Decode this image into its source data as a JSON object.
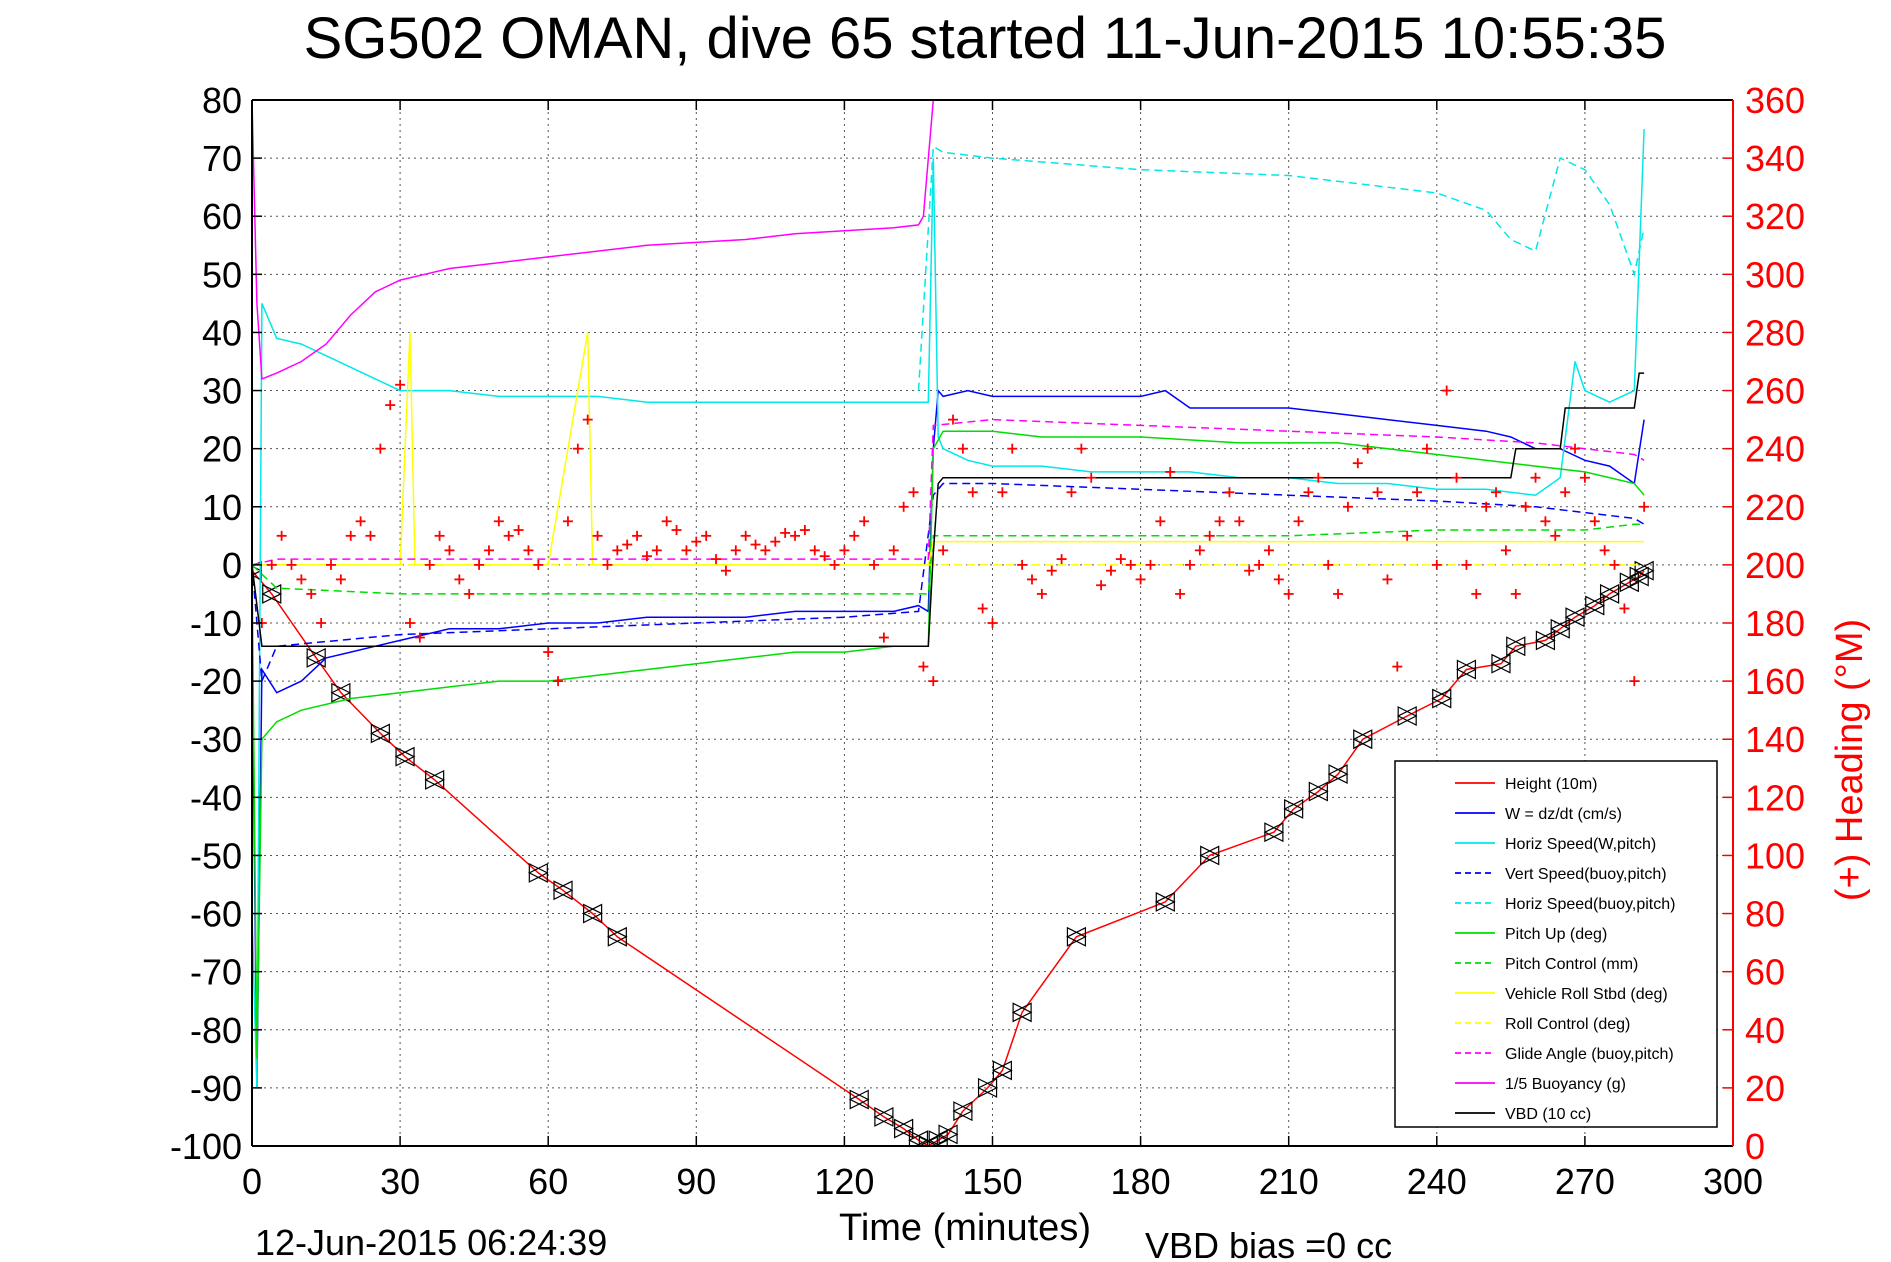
{
  "chart_data": {
    "type": "line",
    "title": "SG502 OMAN, dive 65 started 11-Jun-2015 10:55:35",
    "xlabel": "Time (minutes)",
    "ylabel": "",
    "y2label": "(+) Heading (°M)",
    "footer_left": "12-Jun-2015 06:24:39",
    "footer_right": "VBD bias =0 cc",
    "xlim": [
      0,
      300
    ],
    "ylim": [
      -100,
      80
    ],
    "y2lim": [
      0,
      360
    ],
    "grid": true,
    "legend_position": "bottom-right",
    "xticks": [
      "0",
      "30",
      "60",
      "90",
      "120",
      "150",
      "180",
      "210",
      "240",
      "270",
      "300"
    ],
    "yticks": [
      "80",
      "70",
      "60",
      "50",
      "40",
      "30",
      "20",
      "10",
      "0",
      "-10",
      "-20",
      "-30",
      "-40",
      "-50",
      "-60",
      "-70",
      "-80",
      "-90",
      "-100"
    ],
    "y2ticks": [
      "360",
      "340",
      "320",
      "300",
      "280",
      "260",
      "240",
      "220",
      "200",
      "180",
      "160",
      "140",
      "120",
      "100",
      "80",
      "60",
      "40",
      "20",
      "0"
    ],
    "series": [
      {
        "name": "Height (10m)",
        "color": "#ff0000",
        "style": "solid",
        "marker": "triangle",
        "x": [
          0,
          4,
          13,
          18,
          26,
          31,
          37,
          58,
          63,
          69,
          74,
          123,
          128,
          132,
          135,
          137,
          139,
          141,
          144,
          149,
          152,
          156,
          167,
          185,
          194,
          207,
          211,
          216,
          220,
          225,
          234,
          241,
          246,
          253,
          256,
          262,
          265,
          268,
          272,
          275,
          279,
          281,
          282
        ],
        "y": [
          -1,
          -5,
          -16,
          -22,
          -29,
          -33,
          -37,
          -53,
          -56,
          -60,
          -64,
          -92,
          -95,
          -97,
          -99,
          -100,
          -99,
          -98,
          -94,
          -90,
          -87,
          -77,
          -64,
          -58,
          -50,
          -46,
          -42,
          -39,
          -36,
          -30,
          -26,
          -23,
          -18,
          -17,
          -14,
          -13,
          -11,
          -9,
          -7,
          -5,
          -3,
          -2,
          -1
        ]
      },
      {
        "name": "W = dz/dt (cm/s)",
        "color": "#0000ff",
        "style": "solid",
        "x": [
          0,
          1,
          2,
          5,
          10,
          15,
          20,
          25,
          30,
          40,
          50,
          60,
          70,
          80,
          90,
          100,
          110,
          120,
          130,
          135,
          137,
          138,
          139,
          140,
          145,
          150,
          160,
          170,
          180,
          185,
          190,
          200,
          210,
          220,
          230,
          240,
          250,
          255,
          260,
          265,
          270,
          275,
          280,
          282
        ],
        "y": [
          -10,
          -90,
          -18,
          -22,
          -20,
          -16,
          -15,
          -14,
          -13,
          -11,
          -11,
          -10,
          -10,
          -9,
          -9,
          -9,
          -8,
          -8,
          -8,
          -7,
          -8,
          20,
          30,
          29,
          30,
          29,
          29,
          29,
          29,
          30,
          27,
          27,
          27,
          26,
          25,
          24,
          23,
          22,
          20,
          20,
          18,
          17,
          14,
          25
        ]
      },
      {
        "name": "Horiz Speed(W,pitch)",
        "color": "#00e8e8",
        "style": "solid",
        "x": [
          0,
          1,
          2,
          5,
          10,
          15,
          20,
          25,
          30,
          40,
          50,
          60,
          70,
          80,
          90,
          100,
          110,
          120,
          130,
          135,
          137,
          138,
          139,
          140,
          145,
          150,
          160,
          170,
          180,
          190,
          200,
          210,
          220,
          230,
          240,
          250,
          260,
          265,
          268,
          270,
          275,
          280,
          282
        ],
        "y": [
          -60,
          -90,
          45,
          39,
          38,
          36,
          34,
          32,
          30,
          30,
          29,
          29,
          29,
          28,
          28,
          28,
          28,
          28,
          28,
          28,
          28,
          70,
          22,
          20,
          18,
          17,
          17,
          16,
          16,
          16,
          15,
          15,
          14,
          14,
          13,
          13,
          12,
          15,
          35,
          30,
          28,
          30,
          75
        ]
      },
      {
        "name": "Vert Speed(buoy,pitch)",
        "color": "#0000ff",
        "style": "dashed",
        "x": [
          0,
          2,
          5,
          30,
          60,
          90,
          120,
          135,
          138,
          140,
          150,
          180,
          210,
          240,
          260,
          270,
          280,
          282
        ],
        "y": [
          0,
          -20,
          -14,
          -12,
          -11,
          -10,
          -9,
          -8,
          12,
          14,
          14,
          13,
          12,
          11,
          10,
          9,
          8,
          7
        ]
      },
      {
        "name": "Horiz Speed(buoy,pitch)",
        "color": "#00e8e8",
        "style": "dashed",
        "x": [
          135,
          138,
          140,
          150,
          180,
          210,
          240,
          250,
          255,
          260,
          265,
          270,
          275,
          280,
          282
        ],
        "y": [
          30,
          72,
          71,
          70,
          68,
          67,
          64,
          61,
          56,
          54,
          70,
          68,
          62,
          50,
          58
        ]
      },
      {
        "name": "Pitch Up (deg)",
        "color": "#00dd00",
        "style": "solid",
        "x": [
          0,
          1,
          2,
          5,
          10,
          20,
          30,
          40,
          50,
          60,
          70,
          80,
          90,
          100,
          110,
          120,
          130,
          135,
          137,
          138,
          140,
          150,
          160,
          180,
          200,
          220,
          240,
          260,
          270,
          280,
          282
        ],
        "y": [
          0,
          -85,
          -30,
          -27,
          -25,
          -23,
          -22,
          -21,
          -20,
          -20,
          -19,
          -18,
          -17,
          -16,
          -15,
          -15,
          -14,
          -14,
          -14,
          20,
          23,
          23,
          22,
          22,
          21,
          21,
          19,
          17,
          16,
          14,
          12
        ]
      },
      {
        "name": "Pitch Control (mm)",
        "color": "#00dd00",
        "style": "dashed",
        "x": [
          0,
          5,
          30,
          60,
          90,
          120,
          137,
          138,
          150,
          180,
          210,
          240,
          260,
          270,
          280,
          282
        ],
        "y": [
          0,
          -4,
          -5,
          -5,
          -5,
          -5,
          -5,
          5,
          5,
          5,
          5,
          6,
          6,
          6,
          7,
          7
        ]
      },
      {
        "name": "Vehicle Roll Stbd (deg)",
        "color": "#ffff00",
        "style": "solid",
        "x": [
          0,
          10,
          20,
          30,
          32,
          33,
          60,
          68,
          69,
          90,
          120,
          137,
          138,
          150,
          180,
          210,
          240,
          270,
          280,
          282
        ],
        "y": [
          0,
          0,
          0,
          0,
          40,
          0,
          0,
          40,
          0,
          0,
          0,
          0,
          4,
          4,
          4,
          4,
          4,
          4,
          4,
          4
        ]
      },
      {
        "name": "Roll Control (deg)",
        "color": "#ffff00",
        "style": "dashed",
        "x": [
          0,
          282
        ],
        "y": [
          0,
          0
        ]
      },
      {
        "name": "Glide Angle (buoy,pitch)",
        "color": "#ff00ff",
        "style": "dashed",
        "x": [
          0,
          5,
          30,
          60,
          90,
          120,
          137,
          138,
          150,
          180,
          210,
          240,
          260,
          270,
          280,
          282
        ],
        "y": [
          0,
          1,
          1,
          1,
          1,
          1,
          1,
          24,
          25,
          24,
          23,
          22,
          21,
          20,
          19,
          18
        ]
      },
      {
        "name": "1/5 Buoyancy (g)",
        "color": "#ff00ff",
        "style": "solid",
        "x": [
          0,
          1,
          2,
          5,
          10,
          15,
          20,
          25,
          30,
          35,
          40,
          50,
          60,
          70,
          80,
          90,
          100,
          110,
          120,
          130,
          135,
          136,
          138
        ],
        "y": [
          80,
          45,
          32,
          33,
          35,
          38,
          43,
          47,
          49,
          50,
          51,
          52,
          53,
          54,
          55,
          55.5,
          56,
          57,
          57.5,
          58,
          58.5,
          60,
          80
        ]
      },
      {
        "name": "VBD (10 cc)",
        "color": "#000000",
        "style": "solid",
        "x": [
          0,
          2,
          3,
          136,
          137,
          138,
          139,
          140,
          240,
          255,
          256,
          265,
          266,
          280,
          281,
          282
        ],
        "y": [
          0,
          -14,
          -14,
          -14,
          -14,
          2,
          14,
          15,
          15,
          15,
          20,
          20,
          27,
          27,
          33,
          33
        ]
      }
    ],
    "heading": {
      "name": "(+) Heading",
      "color": "#ff0000",
      "marker": "plus",
      "x": [
        0,
        2,
        4,
        6,
        8,
        10,
        12,
        14,
        16,
        18,
        20,
        22,
        24,
        26,
        28,
        30,
        32,
        34,
        36,
        38,
        40,
        42,
        44,
        46,
        48,
        50,
        52,
        54,
        56,
        58,
        60,
        62,
        64,
        66,
        68,
        70,
        72,
        74,
        76,
        78,
        80,
        82,
        84,
        86,
        88,
        90,
        92,
        94,
        96,
        98,
        100,
        102,
        104,
        106,
        108,
        110,
        112,
        114,
        116,
        118,
        120,
        122,
        124,
        126,
        128,
        130,
        132,
        134,
        136,
        138,
        140,
        142,
        144,
        146,
        148,
        150,
        152,
        154,
        156,
        158,
        160,
        162,
        164,
        166,
        168,
        170,
        172,
        174,
        176,
        178,
        180,
        182,
        184,
        186,
        188,
        190,
        192,
        194,
        196,
        198,
        200,
        202,
        204,
        206,
        208,
        210,
        212,
        214,
        216,
        218,
        220,
        222,
        224,
        226,
        228,
        230,
        232,
        234,
        236,
        238,
        240,
        242,
        244,
        246,
        248,
        250,
        252,
        254,
        256,
        258,
        260,
        262,
        264,
        266,
        268,
        270,
        272,
        274,
        276,
        278,
        280,
        282
      ],
      "y": [
        40,
        180,
        200,
        210,
        200,
        195,
        190,
        180,
        200,
        195,
        210,
        215,
        210,
        240,
        255,
        262,
        180,
        175,
        200,
        210,
        205,
        195,
        190,
        200,
        205,
        215,
        210,
        212,
        205,
        200,
        170,
        160,
        215,
        240,
        250,
        210,
        200,
        205,
        207,
        210,
        203,
        205,
        215,
        212,
        205,
        208,
        210,
        202,
        198,
        205,
        210,
        207,
        205,
        208,
        211,
        210,
        212,
        205,
        203,
        200,
        205,
        210,
        215,
        200,
        175,
        205,
        220,
        225,
        165,
        160,
        205,
        250,
        240,
        225,
        185,
        180,
        225,
        240,
        200,
        195,
        190,
        198,
        202,
        225,
        240,
        230,
        193,
        198,
        202,
        200,
        195,
        200,
        215,
        232,
        190,
        200,
        205,
        210,
        215,
        225,
        215,
        198,
        200,
        205,
        195,
        190,
        215,
        225,
        230,
        200,
        190,
        220,
        235,
        240,
        225,
        195,
        165,
        210,
        225,
        240,
        200,
        260,
        230,
        200,
        190,
        220,
        225,
        205,
        190,
        220,
        230,
        215,
        210,
        225,
        240,
        230,
        215,
        205,
        200,
        185,
        160,
        220
      ]
    }
  },
  "legend": [
    {
      "label": "Height (10m)",
      "color": "#ff0000",
      "style": "solid"
    },
    {
      "label": "W = dz/dt (cm/s)",
      "color": "#0000ff",
      "style": "solid"
    },
    {
      "label": "Horiz Speed(W,pitch)",
      "color": "#00e8e8",
      "style": "solid"
    },
    {
      "label": "Vert Speed(buoy,pitch)",
      "color": "#0000ff",
      "style": "dashed"
    },
    {
      "label": "Horiz Speed(buoy,pitch)",
      "color": "#00e8e8",
      "style": "dashed"
    },
    {
      "label": "Pitch Up (deg)",
      "color": "#00dd00",
      "style": "solid"
    },
    {
      "label": "Pitch Control (mm)",
      "color": "#00dd00",
      "style": "dashed"
    },
    {
      "label": "Vehicle Roll Stbd (deg)",
      "color": "#ffff00",
      "style": "solid"
    },
    {
      "label": "Roll Control (deg)",
      "color": "#ffff00",
      "style": "dashed"
    },
    {
      "label": "Glide Angle (buoy,pitch)",
      "color": "#ff00ff",
      "style": "dashed"
    },
    {
      "label": "1/5 Buoyancy (g)",
      "color": "#ff00ff",
      "style": "solid"
    },
    {
      "label": "VBD (10 cc)",
      "color": "#000000",
      "style": "solid"
    }
  ]
}
